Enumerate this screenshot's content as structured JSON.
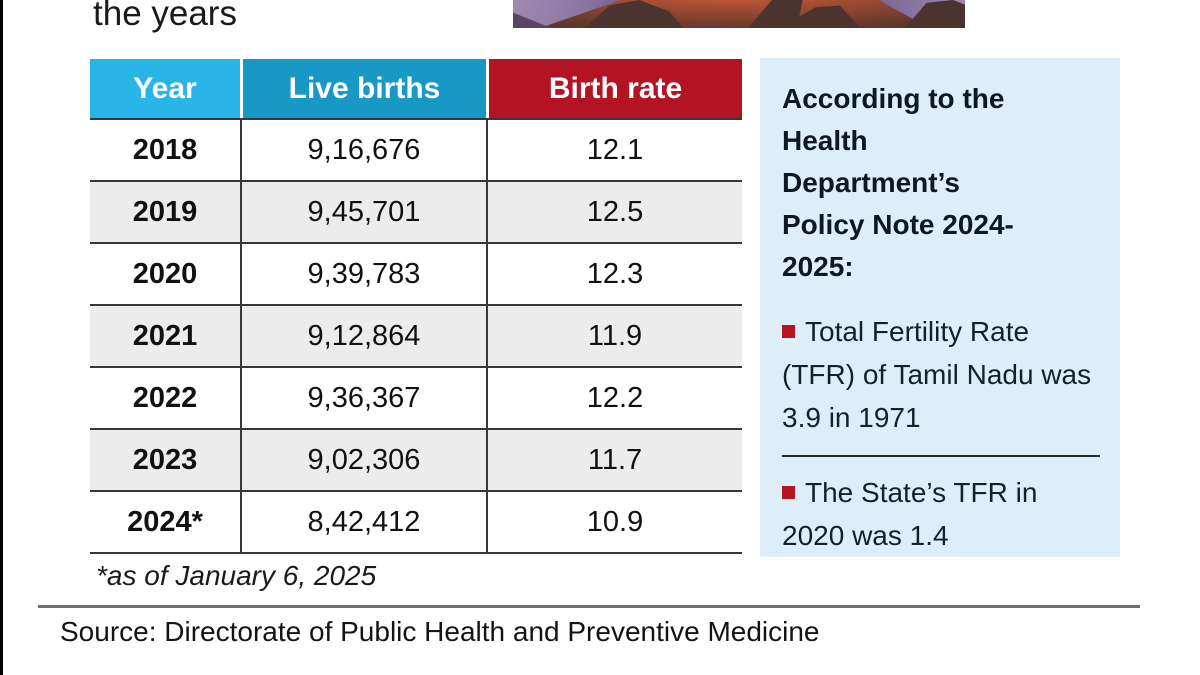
{
  "headline_fragment": "the years",
  "table": {
    "headers": [
      {
        "label": "Year"
      },
      {
        "label": "Live births"
      },
      {
        "label": "Birth rate"
      }
    ],
    "rows": [
      {
        "year": "2018",
        "live_births": "9,16,676",
        "birth_rate": "12.1"
      },
      {
        "year": "2019",
        "live_births": "9,45,701",
        "birth_rate": "12.5"
      },
      {
        "year": "2020",
        "live_births": "9,39,783",
        "birth_rate": "12.3"
      },
      {
        "year": "2021",
        "live_births": "9,12,864",
        "birth_rate": "11.9"
      },
      {
        "year": "2022",
        "live_births": "9,36,367",
        "birth_rate": "12.2"
      },
      {
        "year": "2023",
        "live_births": "9,02,306",
        "birth_rate": "11.7"
      },
      {
        "year": "2024*",
        "live_births": "8,42,412",
        "birth_rate": "10.9"
      }
    ],
    "footnote": "*as of January 6, 2025"
  },
  "sidebar": {
    "heading": "According to the Health Department’s Policy Note 2024-2025:",
    "bullets": [
      "Total Fertility Rate (TFR) of Tamil Nadu was 3.9 in 1971",
      "The State’s TFR in 2020 was 1.4"
    ]
  },
  "source_line": "Source: Directorate of Public Health and Preventive Medicine",
  "colors": {
    "header_year_bg": "#29b5e8",
    "header_births_bg": "#1898c4",
    "header_rate_bg": "#b41323",
    "row_alt_bg": "#ececec",
    "sidebar_bg": "#ddeef9",
    "bullet_marker": "#b41323",
    "table_border": "#383838"
  },
  "chart_data": {
    "type": "table",
    "columns": [
      "Year",
      "Live births",
      "Birth rate"
    ],
    "rows": [
      [
        "2018",
        "9,16,676",
        "12.1"
      ],
      [
        "2019",
        "9,45,701",
        "12.5"
      ],
      [
        "2020",
        "9,39,783",
        "12.3"
      ],
      [
        "2021",
        "9,12,864",
        "11.9"
      ],
      [
        "2022",
        "9,36,367",
        "12.2"
      ],
      [
        "2023",
        "9,02,306",
        "11.7"
      ],
      [
        "2024*",
        "8,42,412",
        "10.9"
      ]
    ],
    "footnote": "*as of January 6, 2025",
    "annotations": [
      "According to the Health Department’s Policy Note 2024-2025:",
      "Total Fertility Rate (TFR) of Tamil Nadu was 3.9 in 1971",
      "The State’s TFR in 2020 was 1.4"
    ],
    "source": "Source: Directorate of Public Health and Preventive Medicine",
    "title": "the years"
  }
}
